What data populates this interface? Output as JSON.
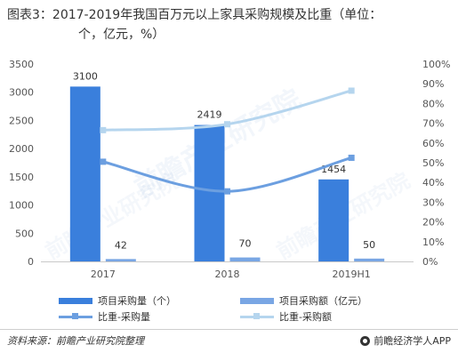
{
  "title": {
    "line1": "图表3：2017-2019年我国百万元以上家具采购规模及比重（单位：",
    "line2": "个，亿元，%）"
  },
  "chart_data": {
    "type": "bar",
    "categories": [
      "2017",
      "2018",
      "2019H1"
    ],
    "series": [
      {
        "name": "项目采购量（个）",
        "kind": "bar",
        "axis": "left",
        "color": "#3a7fdc",
        "values": [
          3100,
          2419,
          1454
        ]
      },
      {
        "name": "项目采购额（亿元）",
        "kind": "bar",
        "axis": "left",
        "color": "#79a6e4",
        "values": [
          42,
          70,
          50
        ]
      },
      {
        "name": "比重-采购量",
        "kind": "line",
        "axis": "right",
        "color": "#6c9fe0",
        "values": [
          50.5,
          35.5,
          52.5
        ]
      },
      {
        "name": "比重-采购额",
        "kind": "line",
        "axis": "right",
        "color": "#b5d5ee",
        "values": [
          66.5,
          69.5,
          86.5
        ]
      }
    ],
    "y_left": {
      "min": 0,
      "max": 3500,
      "ticks": [
        "0",
        "500",
        "1000",
        "1500",
        "2000",
        "2500",
        "3000",
        "3500"
      ]
    },
    "y_right": {
      "min": 0,
      "max": 100,
      "ticks": [
        "0%",
        "10%",
        "20%",
        "30%",
        "40%",
        "50%",
        "60%",
        "70%",
        "80%",
        "90%",
        "100%"
      ]
    },
    "data_labels": [
      "3100",
      "42",
      "2419",
      "70",
      "1454",
      "50"
    ],
    "grid": false,
    "legend_position": "bottom"
  },
  "footer": {
    "source": "资料来源：前瞻产业研究院整理",
    "brand": "前瞻经济学人APP"
  },
  "watermark": "前瞻产业研究院"
}
